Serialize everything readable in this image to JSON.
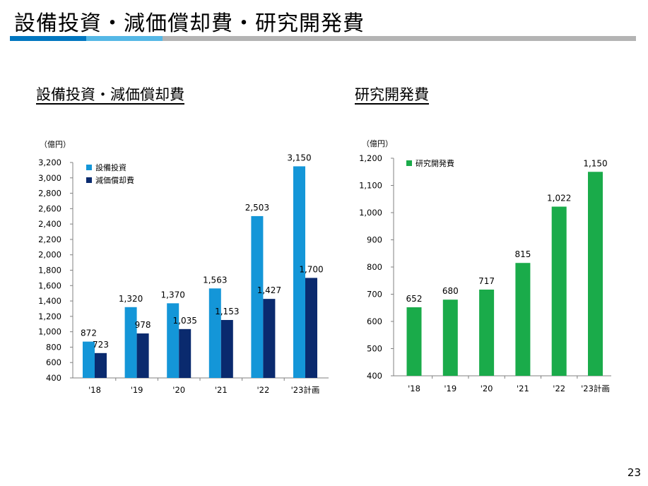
{
  "page": {
    "title": "設備投資・減価償却費・研究開発費",
    "page_number": "23"
  },
  "colors": {
    "title_bar": [
      "#0076c0",
      "#55b8e6",
      "#b4b4b4"
    ],
    "capex": "#1496d8",
    "depreciation": "#0a2a6e",
    "rd": "#1aab4a"
  },
  "chart_data": [
    {
      "type": "bar",
      "title": "設備投資・減価償却費",
      "unit_label": "（億円）",
      "categories": [
        "'18",
        "'19",
        "'20",
        "'21",
        "'22",
        "'23計画"
      ],
      "series": [
        {
          "name": "設備投資",
          "values": [
            872,
            1320,
            1370,
            1563,
            2503,
            3150
          ]
        },
        {
          "name": "減価償却費",
          "values": [
            723,
            978,
            1035,
            1153,
            1427,
            1700
          ]
        }
      ],
      "ylim": [
        400,
        3200
      ],
      "yticks": [
        400,
        600,
        800,
        1000,
        1200,
        1400,
        1600,
        1800,
        2000,
        2200,
        2400,
        2600,
        2800,
        3000,
        3200
      ],
      "legend_position": "top-left",
      "grid": false
    },
    {
      "type": "bar",
      "title": "研究開発費",
      "unit_label": "（億円）",
      "categories": [
        "'18",
        "'19",
        "'20",
        "'21",
        "'22",
        "'23計画"
      ],
      "series": [
        {
          "name": "研究開発費",
          "values": [
            652,
            680,
            717,
            815,
            1022,
            1150
          ]
        }
      ],
      "ylim": [
        400,
        1200
      ],
      "yticks": [
        400,
        500,
        600,
        700,
        800,
        900,
        1000,
        1100,
        1200
      ],
      "legend_position": "top-left",
      "grid": false
    }
  ]
}
